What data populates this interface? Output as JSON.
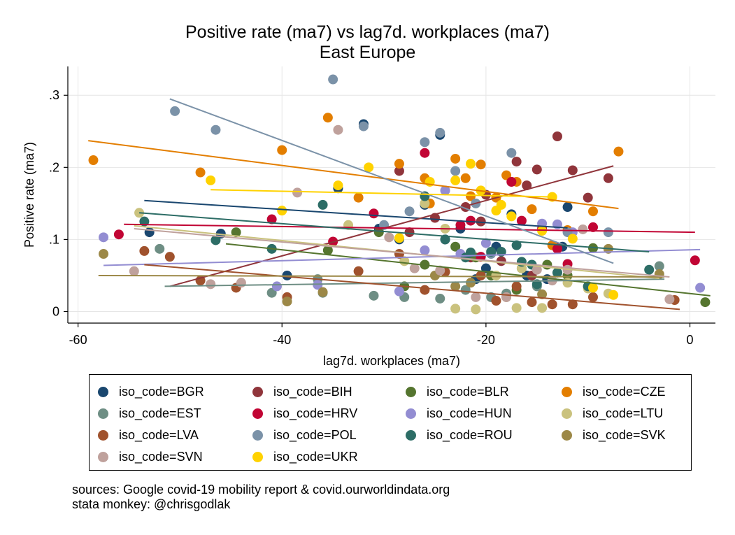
{
  "title": "Positive rate (ma7) vs lag7d. workplaces (ma7)",
  "subtitle": "East Europe",
  "notes": [
    "sources: Google covid-19 mobility report & covid.ourworldindata.org",
    "stata monkey: @chrisgodlak"
  ],
  "chart_data": {
    "type": "scatter",
    "xlabel": "lag7d. workplaces (ma7)",
    "ylabel": "Positive rate (ma7)",
    "xlim": [
      -61,
      2.5
    ],
    "ylim": [
      -0.016,
      0.34
    ],
    "x_ticks": [
      -60,
      -40,
      -20,
      0
    ],
    "x_tick_labels": [
      "-60",
      "-40",
      "-20",
      "0"
    ],
    "y_ticks": [
      0,
      0.1,
      0.2,
      0.3
    ],
    "y_tick_labels": [
      "0",
      ".1",
      ".2",
      ".3"
    ],
    "grid": true,
    "legend_position": "bottom",
    "series": [
      {
        "name": "iso_code=BGR",
        "color": "#1a476f",
        "points": [
          [
            -32,
            0.26
          ],
          [
            -24.5,
            0.245
          ],
          [
            -34.5,
            0.171
          ],
          [
            -26,
            0.148
          ],
          [
            -53,
            0.11
          ],
          [
            -46,
            0.108
          ],
          [
            -39.5,
            0.05
          ],
          [
            -30.5,
            0.115
          ],
          [
            -28.5,
            0.1
          ],
          [
            -22.5,
            0.115
          ],
          [
            -20,
            0.06
          ],
          [
            -17.5,
            0.135
          ],
          [
            -16,
            0.05
          ],
          [
            -12,
            0.145
          ],
          [
            -19,
            0.09
          ],
          [
            -24,
            0.1
          ],
          [
            -14,
            0.045
          ],
          [
            -21,
            0.045
          ],
          [
            -12.5,
            0.09
          ]
        ],
        "fit": [
          [
            -53.5,
            0.154
          ],
          [
            -12,
            0.116
          ]
        ]
      },
      {
        "name": "iso_code=BIH",
        "color": "#90353b",
        "points": [
          [
            -13,
            0.243
          ],
          [
            -15,
            0.197
          ],
          [
            -11.5,
            0.196
          ],
          [
            -17,
            0.208
          ],
          [
            -8,
            0.185
          ],
          [
            -17.5,
            0.18
          ],
          [
            -16,
            0.175
          ],
          [
            -10,
            0.158
          ],
          [
            -20,
            0.162
          ],
          [
            -28.5,
            0.195
          ],
          [
            -22,
            0.145
          ],
          [
            -20.5,
            0.125
          ],
          [
            -25,
            0.13
          ],
          [
            -27.5,
            0.11
          ],
          [
            -13,
            0.088
          ],
          [
            -21.5,
            0.075
          ],
          [
            -18.5,
            0.07
          ],
          [
            -15.5,
            0.05
          ]
        ],
        "fit": [
          [
            -51,
            0.035
          ],
          [
            -7.5,
            0.202
          ]
        ]
      },
      {
        "name": "iso_code=BLR",
        "color": "#55752f",
        "points": [
          [
            1.5,
            0.013
          ],
          [
            -26,
            0.065
          ],
          [
            -30.5,
            0.11
          ],
          [
            -35.5,
            0.085
          ],
          [
            -19.5,
            0.05
          ],
          [
            -16.5,
            0.06
          ],
          [
            -12,
            0.05
          ],
          [
            -9.5,
            0.088
          ],
          [
            -17,
            0.03
          ],
          [
            -10,
            0.035
          ],
          [
            -28,
            0.035
          ],
          [
            -44.5,
            0.11
          ],
          [
            -21,
            0.075
          ],
          [
            -14,
            0.065
          ],
          [
            -23,
            0.09
          ]
        ],
        "fit": [
          [
            -45.5,
            0.094
          ],
          [
            2,
            0.022
          ]
        ]
      },
      {
        "name": "iso_code=CZE",
        "color": "#e37e00",
        "points": [
          [
            -58.5,
            0.21
          ],
          [
            -48,
            0.193
          ],
          [
            -40,
            0.224
          ],
          [
            -35.5,
            0.269
          ],
          [
            -28.5,
            0.205
          ],
          [
            -26,
            0.185
          ],
          [
            -23,
            0.212
          ],
          [
            -20.5,
            0.204
          ],
          [
            -22,
            0.185
          ],
          [
            -18,
            0.189
          ],
          [
            -17,
            0.18
          ],
          [
            -21.5,
            0.16
          ],
          [
            -19,
            0.158
          ],
          [
            -15.5,
            0.142
          ],
          [
            -9.5,
            0.139
          ],
          [
            -7,
            0.222
          ],
          [
            -12,
            0.113
          ],
          [
            -13.5,
            0.092
          ],
          [
            -32.5,
            0.158
          ],
          [
            -25.5,
            0.15
          ]
        ],
        "fit": [
          [
            -59,
            0.237
          ],
          [
            -7,
            0.143
          ]
        ]
      },
      {
        "name": "iso_code=EST",
        "color": "#6e8e84",
        "points": [
          [
            -52,
            0.087
          ],
          [
            -41,
            0.026
          ],
          [
            -36,
            0.026
          ],
          [
            -31,
            0.022
          ],
          [
            -28,
            0.02
          ],
          [
            -24.5,
            0.018
          ],
          [
            -22,
            0.03
          ],
          [
            -19.5,
            0.02
          ],
          [
            -3,
            0.063
          ],
          [
            -36.5,
            0.045
          ],
          [
            -18,
            0.025
          ],
          [
            -15,
            0.035
          ]
        ],
        "fit": [
          [
            -51.5,
            0.035
          ],
          [
            -2.5,
            0.045
          ]
        ]
      },
      {
        "name": "iso_code=HRV",
        "color": "#c10534",
        "points": [
          [
            -56,
            0.107
          ],
          [
            -41,
            0.128
          ],
          [
            -35,
            0.097
          ],
          [
            -31,
            0.136
          ],
          [
            -26,
            0.22
          ],
          [
            -22.5,
            0.12
          ],
          [
            -21.5,
            0.126
          ],
          [
            -17.5,
            0.18
          ],
          [
            -16.5,
            0.126
          ],
          [
            -14.5,
            0.115
          ],
          [
            -13,
            0.087
          ],
          [
            -12,
            0.066
          ],
          [
            -9.5,
            0.117
          ],
          [
            0.5,
            0.071
          ],
          [
            -20.5,
            0.076
          ]
        ],
        "fit": [
          [
            -55.5,
            0.121
          ],
          [
            0.5,
            0.11
          ]
        ]
      },
      {
        "name": "iso_code=HUN",
        "color": "#938dd2",
        "points": [
          [
            -57.5,
            0.103
          ],
          [
            -40.5,
            0.035
          ],
          [
            -36.5,
            0.037
          ],
          [
            -28.5,
            0.028
          ],
          [
            -26,
            0.085
          ],
          [
            -24,
            0.168
          ],
          [
            -22.5,
            0.08
          ],
          [
            -14.5,
            0.122
          ],
          [
            -11.5,
            0.11
          ],
          [
            -13,
            0.121
          ],
          [
            1,
            0.033
          ],
          [
            -20,
            0.095
          ]
        ],
        "fit": [
          [
            -57.5,
            0.064
          ],
          [
            1,
            0.086
          ]
        ]
      },
      {
        "name": "iso_code=LTU",
        "color": "#cac27e",
        "points": [
          [
            -54,
            0.137
          ],
          [
            -33.5,
            0.12
          ],
          [
            -28,
            0.07
          ],
          [
            -24,
            0.115
          ],
          [
            -23,
            0.004
          ],
          [
            -21,
            0.003
          ],
          [
            -17,
            0.005
          ],
          [
            -14.5,
            0.005
          ],
          [
            -10,
            0.032
          ],
          [
            -8,
            0.025
          ],
          [
            -26,
            0.15
          ],
          [
            -19,
            0.05
          ],
          [
            -16.5,
            0.06
          ],
          [
            -12,
            0.04
          ]
        ],
        "fit": [
          [
            -54.5,
            0.119
          ],
          [
            -3,
            0.046
          ]
        ]
      },
      {
        "name": "iso_code=LVA",
        "color": "#a0522d",
        "points": [
          [
            -53.5,
            0.084
          ],
          [
            -51,
            0.076
          ],
          [
            -48,
            0.043
          ],
          [
            -44.5,
            0.033
          ],
          [
            -39.5,
            0.02
          ],
          [
            -32.5,
            0.056
          ],
          [
            -28.5,
            0.08
          ],
          [
            -26,
            0.03
          ],
          [
            -20.5,
            0.05
          ],
          [
            -19,
            0.015
          ],
          [
            -15.5,
            0.013
          ],
          [
            -13.5,
            0.01
          ],
          [
            -11.5,
            0.01
          ],
          [
            -9.5,
            0.02
          ],
          [
            -1.5,
            0.016
          ],
          [
            -24,
            0.055
          ],
          [
            -17,
            0.035
          ]
        ],
        "fit": [
          [
            -53.5,
            0.065
          ],
          [
            -1,
            0.003
          ]
        ]
      },
      {
        "name": "iso_code=POL",
        "color": "#7b92a8",
        "points": [
          [
            -50.5,
            0.278
          ],
          [
            -46.5,
            0.252
          ],
          [
            -35,
            0.322
          ],
          [
            -32,
            0.257
          ],
          [
            -26,
            0.235
          ],
          [
            -24.5,
            0.248
          ],
          [
            -23,
            0.195
          ],
          [
            -17.5,
            0.22
          ],
          [
            -27.5,
            0.139
          ],
          [
            -30,
            0.12
          ],
          [
            -21,
            0.15
          ],
          [
            -12,
            0.11
          ],
          [
            -8,
            0.11
          ],
          [
            -19.5,
            0.08
          ]
        ],
        "fit": [
          [
            -51,
            0.295
          ],
          [
            -7.5,
            0.067
          ]
        ]
      },
      {
        "name": "iso_code=ROU",
        "color": "#2d6d66",
        "points": [
          [
            -53.5,
            0.125
          ],
          [
            -46.5,
            0.099
          ],
          [
            -41,
            0.087
          ],
          [
            -36,
            0.148
          ],
          [
            -26,
            0.16
          ],
          [
            -24,
            0.1
          ],
          [
            -21.5,
            0.082
          ],
          [
            -19.5,
            0.083
          ],
          [
            -18.5,
            0.083
          ],
          [
            -17,
            0.092
          ],
          [
            -16.5,
            0.069
          ],
          [
            -15.5,
            0.065
          ],
          [
            -15,
            0.038
          ],
          [
            -13,
            0.054
          ],
          [
            -10,
            0.035
          ],
          [
            -4,
            0.058
          ],
          [
            -22,
            0.075
          ]
        ],
        "fit": [
          [
            -54,
            0.137
          ],
          [
            -4,
            0.083
          ]
        ]
      },
      {
        "name": "iso_code=SVK",
        "color": "#9c8847",
        "points": [
          [
            -57.5,
            0.08
          ],
          [
            -39.5,
            0.014
          ],
          [
            -36,
            0.027
          ],
          [
            -23,
            0.035
          ],
          [
            -21.5,
            0.04
          ],
          [
            -18,
            0.02
          ],
          [
            -14.5,
            0.024
          ],
          [
            -8,
            0.087
          ],
          [
            -3,
            0.052
          ],
          [
            -25,
            0.05
          ]
        ],
        "fit": [
          [
            -58,
            0.05
          ],
          [
            -2.5,
            0.048
          ]
        ]
      },
      {
        "name": "iso_code=SVN",
        "color": "#bfa19c",
        "points": [
          [
            -54.5,
            0.056
          ],
          [
            -47,
            0.038
          ],
          [
            -44,
            0.04
          ],
          [
            -38.5,
            0.165
          ],
          [
            -34.5,
            0.252
          ],
          [
            -29.5,
            0.103
          ],
          [
            -27,
            0.06
          ],
          [
            -24.5,
            0.057
          ],
          [
            -21,
            0.02
          ],
          [
            -18,
            0.02
          ],
          [
            -15,
            0.058
          ],
          [
            -13.5,
            0.043
          ],
          [
            -10.5,
            0.114
          ],
          [
            -12,
            0.058
          ],
          [
            -2,
            0.017
          ]
        ],
        "fit": [
          [
            -54.5,
            0.115
          ],
          [
            -2,
            0.048
          ]
        ]
      },
      {
        "name": "iso_code=UKR",
        "color": "#ffd200",
        "points": [
          [
            -47,
            0.182
          ],
          [
            -40,
            0.14
          ],
          [
            -34.5,
            0.175
          ],
          [
            -31.5,
            0.2
          ],
          [
            -28.5,
            0.102
          ],
          [
            -25.5,
            0.18
          ],
          [
            -23,
            0.182
          ],
          [
            -21.5,
            0.205
          ],
          [
            -20.5,
            0.168
          ],
          [
            -19,
            0.14
          ],
          [
            -18.5,
            0.148
          ],
          [
            -17.5,
            0.132
          ],
          [
            -14.5,
            0.112
          ],
          [
            -13.5,
            0.159
          ],
          [
            -11.5,
            0.101
          ],
          [
            -9.5,
            0.033
          ],
          [
            -7.5,
            0.023
          ]
        ],
        "fit": [
          [
            -47,
            0.169
          ],
          [
            -13.5,
            0.159
          ]
        ]
      }
    ]
  }
}
